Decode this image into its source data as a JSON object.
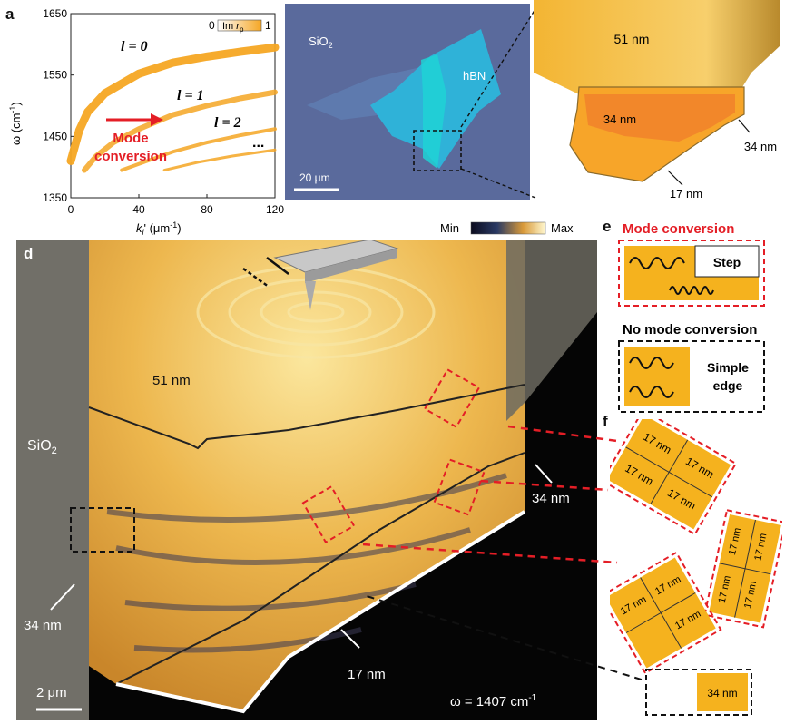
{
  "panels": {
    "a": "a",
    "b": "b",
    "c": "c",
    "d": "d",
    "e": "e",
    "f": "f"
  },
  "chart_data": {
    "type": "line",
    "xlabel_main": "k",
    "xlabel_sub": "l",
    "xlabel_rest": "' (μm",
    "xlabel_exp": "-1",
    "xlabel_end": ")",
    "ylabel_main": "ω (cm",
    "ylabel_exp": "-1",
    "ylabel_end": ")",
    "x_ticks": [
      "0",
      "40",
      "80",
      "120"
    ],
    "y_ticks": [
      "1350",
      "1450",
      "1550",
      "1650"
    ],
    "xlim": [
      0,
      120
    ],
    "ylim": [
      1350,
      1650
    ],
    "colorbar": {
      "min": "0",
      "label": "Im ",
      "label_sym": "r",
      "label_sub": "p",
      "max": "1"
    },
    "series": [
      {
        "name": "l = 0",
        "x": [
          0,
          5,
          10,
          20,
          40,
          60,
          80,
          100,
          120
        ],
        "y": [
          1410,
          1460,
          1490,
          1520,
          1552,
          1570,
          1580,
          1588,
          1595
        ]
      },
      {
        "name": "l = 1",
        "x": [
          8,
          15,
          25,
          40,
          60,
          80,
          100,
          120
        ],
        "y": [
          1395,
          1418,
          1440,
          1462,
          1485,
          1500,
          1512,
          1522
        ]
      },
      {
        "name": "l = 2",
        "x": [
          30,
          45,
          60,
          80,
          100,
          120
        ],
        "y": [
          1395,
          1410,
          1425,
          1440,
          1452,
          1462
        ]
      },
      {
        "name": "",
        "x": [
          55,
          75,
          95,
          120
        ],
        "y": [
          1395,
          1408,
          1418,
          1428
        ]
      }
    ],
    "mode_labels": [
      "l = 0",
      "l = 1",
      "l = 2",
      "..."
    ],
    "arrow_text_1": "Mode",
    "arrow_text_2": "conversion"
  },
  "b": {
    "sio2": "SiO",
    "sio2_sub": "2",
    "hbn": "hBN",
    "scale": "20 μm"
  },
  "c": {
    "t51": "51 nm",
    "t34a": "34 nm",
    "t34b": "34 nm",
    "t17": "17 nm"
  },
  "d": {
    "colorbar_min": "Min",
    "colorbar_max": "Max",
    "t51": "51 nm",
    "sio2": "SiO",
    "sio2_sub": "2",
    "t34_right": "34 nm",
    "t34_left": "34 nm",
    "t17": "17 nm",
    "scale": "2 μm",
    "omega": "ω = 1407 cm",
    "omega_exp": "-1"
  },
  "e": {
    "title_conv": "Mode conversion",
    "step": "Step",
    "title_noconv": "No mode conversion",
    "simple1": "Simple",
    "simple2": "edge"
  },
  "f": {
    "label": "17 nm",
    "t34": "34 nm"
  }
}
